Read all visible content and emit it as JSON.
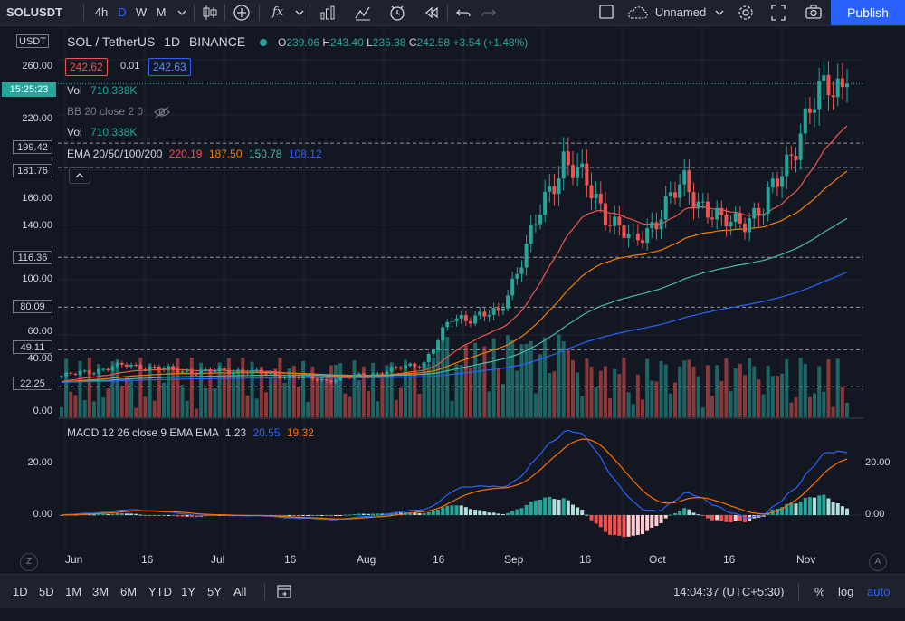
{
  "toolbar": {
    "symbol": "SOLUSDT",
    "intervals": [
      "4h",
      "D",
      "W",
      "M"
    ],
    "active_interval": "D",
    "layout_name": "Unnamed",
    "publish_label": "Publish"
  },
  "header": {
    "currency_badge": "USDT",
    "title": "SOL / TetherUS",
    "interval": "1D",
    "exchange": "BINANCE",
    "o_label": "O",
    "o": "239.06",
    "h_label": "H",
    "h": "243.40",
    "l_label": "L",
    "l": "235.38",
    "c_label": "C",
    "c": "242.58",
    "change": "+3.54 (+1.48%)",
    "bid": "242.62",
    "spread": "0.01",
    "ask": "242.63"
  },
  "indicators": {
    "vol_overlay": "Vol",
    "vol_overlay_value": "710.338K",
    "bb": "BB 20 close 2 0",
    "vol": "Vol",
    "vol_value": "710.338K",
    "ema_label": "EMA 20/50/100/200",
    "ema20": "220.19",
    "ema50": "187.50",
    "ema100": "150.78",
    "ema200": "108.12",
    "macd_label": "MACD 12 26 close 9 EMA EMA",
    "macd_hist": "1.23",
    "macd_line": "20.55",
    "macd_signal": "19.32"
  },
  "price_axis": {
    "ticks": [
      "260.00",
      "220.00",
      "160.00",
      "140.00",
      "100.00",
      "60.00",
      "40.00",
      "0.00"
    ],
    "level_boxes": [
      "199.42",
      "181.76",
      "116.36",
      "80.09",
      "49.11",
      "22.25"
    ],
    "current_time": "15:25:23",
    "macd_ticks": [
      "20.00",
      "0.00"
    ]
  },
  "time_axis": {
    "labels": [
      "Jun",
      "16",
      "Jul",
      "16",
      "Aug",
      "16",
      "Sep",
      "16",
      "Oct",
      "16",
      "Nov"
    ]
  },
  "bottombar": {
    "ranges": [
      "1D",
      "5D",
      "1M",
      "3M",
      "6M",
      "YTD",
      "1Y",
      "5Y",
      "All"
    ],
    "clock": "14:04:37 (UTC+5:30)",
    "percent": "%",
    "log": "log",
    "auto": "auto"
  },
  "colors": {
    "up": "#26a69a",
    "down": "#ef5350",
    "ema20": "#ef5350",
    "ema50": "#f57c00",
    "ema100": "#4db6ac",
    "ema200": "#2962ff",
    "macd": "#2962ff",
    "signal": "#ff6d00",
    "accent": "#2962ff"
  },
  "chart_data": {
    "type": "candlestick",
    "symbol": "SOL / TetherUS",
    "interval": "1D",
    "ylim": [
      0,
      270
    ],
    "x_range": [
      "2021-05-24",
      "2021-11-09"
    ],
    "close_anchors": [
      {
        "date": "2021-05-24",
        "price": 30
      },
      {
        "date": "2021-06-07",
        "price": 38
      },
      {
        "date": "2021-06-21",
        "price": 33
      },
      {
        "date": "2021-07-01",
        "price": 34
      },
      {
        "date": "2021-07-20",
        "price": 27
      },
      {
        "date": "2021-07-31",
        "price": 32
      },
      {
        "date": "2021-08-10",
        "price": 40
      },
      {
        "date": "2021-08-16",
        "price": 72
      },
      {
        "date": "2021-08-26",
        "price": 75
      },
      {
        "date": "2021-09-03",
        "price": 140
      },
      {
        "date": "2021-09-09",
        "price": 190
      },
      {
        "date": "2021-09-18",
        "price": 150
      },
      {
        "date": "2021-09-24",
        "price": 125
      },
      {
        "date": "2021-10-05",
        "price": 170
      },
      {
        "date": "2021-10-13",
        "price": 140
      },
      {
        "date": "2021-10-22",
        "price": 150
      },
      {
        "date": "2021-10-28",
        "price": 195
      },
      {
        "date": "2021-11-05",
        "price": 245
      },
      {
        "date": "2021-11-09",
        "price": 242.58
      }
    ],
    "volume_bars_level_volume_scale": {
      "max_label": "1.5x",
      "note": "relative"
    },
    "horizontal_levels": [
      199.42,
      181.76,
      116.36,
      80.09,
      49.11,
      22.25
    ],
    "last_close": 242.58,
    "ema_last": {
      "ema20": 220.19,
      "ema50": 187.5,
      "ema100": 150.78,
      "ema200": 108.12
    },
    "macd_last": {
      "macd": 20.55,
      "signal": 19.32,
      "histogram": 1.23
    },
    "macd_ylim": [
      -10,
      35
    ]
  }
}
